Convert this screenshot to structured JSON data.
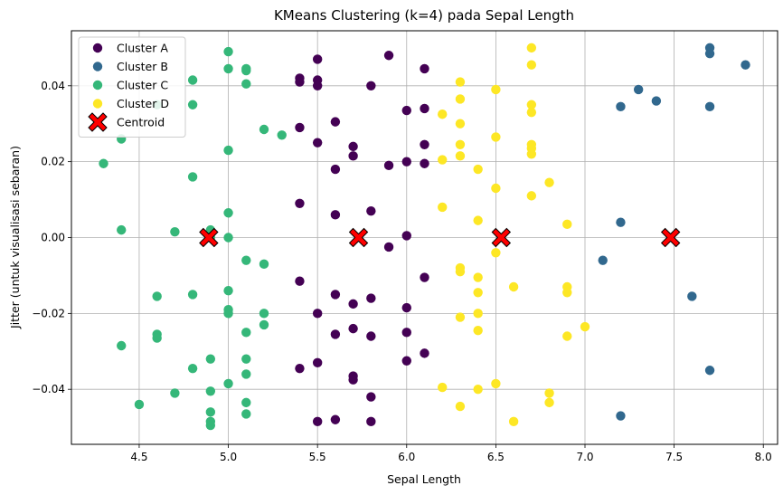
{
  "chart_data": {
    "type": "scatter",
    "title": "KMeans Clustering (k=4) pada Sepal Length",
    "xlabel": "Sepal Length",
    "ylabel": "Jitter (untuk visualisasi sebaran)",
    "xlim": [
      4.12,
      8.08
    ],
    "ylim": [
      -0.0545,
      0.0545
    ],
    "xticks": [
      4.5,
      5.0,
      5.5,
      6.0,
      6.5,
      7.0,
      7.5,
      8.0
    ],
    "xtick_labels": [
      "4.5",
      "5.0",
      "5.5",
      "6.0",
      "6.5",
      "7.0",
      "7.5",
      "8.0"
    ],
    "yticks": [
      -0.04,
      -0.02,
      0.0,
      0.02,
      0.04
    ],
    "ytick_labels": [
      "−0.04",
      "−0.02",
      "0.00",
      "0.02",
      "0.04"
    ],
    "grid": true,
    "legend_position": "top-left",
    "series": [
      {
        "name": "Cluster A",
        "color": "#440154",
        "points": [
          [
            5.4,
            0.042
          ],
          [
            5.4,
            0.041
          ],
          [
            5.5,
            0.047
          ],
          [
            5.5,
            0.0415
          ],
          [
            5.5,
            0.04
          ],
          [
            5.8,
            0.04
          ],
          [
            5.9,
            0.048
          ],
          [
            6.1,
            0.0445
          ],
          [
            6.0,
            0.0335
          ],
          [
            6.1,
            0.034
          ],
          [
            5.4,
            0.029
          ],
          [
            5.6,
            0.0305
          ],
          [
            5.5,
            0.025
          ],
          [
            5.7,
            0.024
          ],
          [
            5.7,
            0.0215
          ],
          [
            6.1,
            0.0245
          ],
          [
            5.6,
            0.018
          ],
          [
            5.9,
            0.019
          ],
          [
            6.0,
            0.02
          ],
          [
            6.1,
            0.0195
          ],
          [
            5.4,
            0.009
          ],
          [
            5.6,
            0.006
          ],
          [
            5.8,
            0.007
          ],
          [
            5.9,
            -0.0025
          ],
          [
            6.0,
            0.0005
          ],
          [
            5.4,
            -0.0115
          ],
          [
            5.6,
            -0.015
          ],
          [
            5.8,
            -0.016
          ],
          [
            5.7,
            -0.0175
          ],
          [
            6.0,
            -0.0185
          ],
          [
            6.1,
            -0.0105
          ],
          [
            5.5,
            -0.02
          ],
          [
            5.7,
            -0.024
          ],
          [
            5.6,
            -0.0255
          ],
          [
            5.8,
            -0.026
          ],
          [
            6.0,
            -0.025
          ],
          [
            6.1,
            -0.0305
          ],
          [
            6.0,
            -0.0325
          ],
          [
            5.5,
            -0.033
          ],
          [
            5.4,
            -0.0345
          ],
          [
            5.7,
            -0.0365
          ],
          [
            5.7,
            -0.0375
          ],
          [
            5.8,
            -0.042
          ],
          [
            5.5,
            -0.0485
          ],
          [
            5.6,
            -0.048
          ],
          [
            5.8,
            -0.0485
          ]
        ]
      },
      {
        "name": "Cluster B",
        "color": "#31688e",
        "points": [
          [
            7.7,
            0.05
          ],
          [
            7.7,
            0.0485
          ],
          [
            7.9,
            0.0455
          ],
          [
            7.3,
            0.039
          ],
          [
            7.4,
            0.036
          ],
          [
            7.2,
            0.0345
          ],
          [
            7.7,
            0.0345
          ],
          [
            7.2,
            0.004
          ],
          [
            7.1,
            -0.006
          ],
          [
            7.6,
            -0.0155
          ],
          [
            7.7,
            -0.035
          ],
          [
            7.2,
            -0.047
          ]
        ]
      },
      {
        "name": "Cluster C",
        "color": "#35b779",
        "points": [
          [
            5.0,
            0.049
          ],
          [
            5.0,
            0.0445
          ],
          [
            5.1,
            0.0445
          ],
          [
            5.1,
            0.044
          ],
          [
            4.8,
            0.0415
          ],
          [
            5.1,
            0.0405
          ],
          [
            4.6,
            0.035
          ],
          [
            4.8,
            0.035
          ],
          [
            5.2,
            0.0285
          ],
          [
            5.3,
            0.027
          ],
          [
            4.4,
            0.026
          ],
          [
            5.0,
            0.023
          ],
          [
            4.3,
            0.0195
          ],
          [
            4.8,
            0.016
          ],
          [
            5.0,
            0.0065
          ],
          [
            4.4,
            0.002
          ],
          [
            4.7,
            0.0015
          ],
          [
            4.9,
            0.002
          ],
          [
            4.9,
            0.0
          ],
          [
            5.0,
            0.0
          ],
          [
            5.1,
            -0.006
          ],
          [
            5.2,
            -0.007
          ],
          [
            5.0,
            -0.014
          ],
          [
            4.6,
            -0.0155
          ],
          [
            4.8,
            -0.015
          ],
          [
            5.0,
            -0.019
          ],
          [
            5.0,
            -0.02
          ],
          [
            5.2,
            -0.02
          ],
          [
            5.2,
            -0.023
          ],
          [
            5.1,
            -0.025
          ],
          [
            4.6,
            -0.0255
          ],
          [
            4.6,
            -0.0265
          ],
          [
            4.4,
            -0.0285
          ],
          [
            4.9,
            -0.032
          ],
          [
            5.1,
            -0.032
          ],
          [
            4.8,
            -0.0345
          ],
          [
            5.1,
            -0.036
          ],
          [
            5.0,
            -0.0385
          ],
          [
            4.9,
            -0.0405
          ],
          [
            4.7,
            -0.041
          ],
          [
            5.1,
            -0.0435
          ],
          [
            4.5,
            -0.044
          ],
          [
            4.9,
            -0.046
          ],
          [
            5.1,
            -0.0465
          ],
          [
            4.9,
            -0.0485
          ],
          [
            4.9,
            -0.0495
          ]
        ]
      },
      {
        "name": "Cluster D",
        "color": "#fde725",
        "points": [
          [
            6.7,
            0.05
          ],
          [
            6.7,
            0.0455
          ],
          [
            6.3,
            0.041
          ],
          [
            6.5,
            0.039
          ],
          [
            6.3,
            0.0365
          ],
          [
            6.7,
            0.035
          ],
          [
            6.7,
            0.033
          ],
          [
            6.2,
            0.0325
          ],
          [
            6.3,
            0.03
          ],
          [
            6.5,
            0.0265
          ],
          [
            6.3,
            0.0245
          ],
          [
            6.7,
            0.0245
          ],
          [
            6.7,
            0.0235
          ],
          [
            6.3,
            0.0215
          ],
          [
            6.7,
            0.022
          ],
          [
            6.2,
            0.0205
          ],
          [
            6.4,
            0.018
          ],
          [
            6.8,
            0.0145
          ],
          [
            6.5,
            0.013
          ],
          [
            6.7,
            0.011
          ],
          [
            6.2,
            0.008
          ],
          [
            6.4,
            0.0045
          ],
          [
            6.9,
            0.0035
          ],
          [
            6.5,
            -0.004
          ],
          [
            6.3,
            -0.008
          ],
          [
            6.3,
            -0.009
          ],
          [
            6.4,
            -0.0105
          ],
          [
            6.6,
            -0.013
          ],
          [
            6.9,
            -0.013
          ],
          [
            6.9,
            -0.0145
          ],
          [
            6.4,
            -0.0145
          ],
          [
            6.4,
            -0.02
          ],
          [
            6.3,
            -0.021
          ],
          [
            7.0,
            -0.0235
          ],
          [
            6.4,
            -0.0245
          ],
          [
            6.9,
            -0.026
          ],
          [
            6.2,
            -0.0395
          ],
          [
            6.5,
            -0.0385
          ],
          [
            6.4,
            -0.04
          ],
          [
            6.8,
            -0.041
          ],
          [
            6.8,
            -0.0435
          ],
          [
            6.3,
            -0.0445
          ],
          [
            6.6,
            -0.0485
          ]
        ]
      }
    ],
    "centroids": {
      "name": "Centroid",
      "color": "#ff0000",
      "marker": "X",
      "points": [
        [
          4.89,
          0.0
        ],
        [
          5.73,
          0.0
        ],
        [
          6.53,
          0.0
        ],
        [
          7.48,
          0.0
        ]
      ]
    }
  }
}
